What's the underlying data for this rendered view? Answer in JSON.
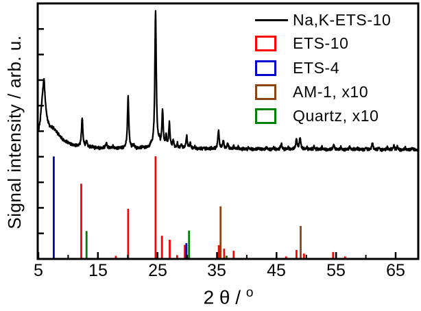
{
  "chart_data": {
    "type": "line",
    "title": "",
    "xlabel": "2 θ / °",
    "xlabel_main": "2 θ / ",
    "xlabel_sup": "o",
    "ylabel": "Signal intensity / arb. u.",
    "xlim": [
      5,
      68.8
    ],
    "ylim": [
      0,
      100
    ],
    "xticks_major": [
      5,
      15,
      25,
      35,
      45,
      55,
      65
    ],
    "xticks_minor": [
      10,
      20,
      30,
      40,
      50,
      60
    ],
    "yticks_count": 9,
    "grid": false,
    "legend_position": "top-right",
    "colors": {
      "trace": "#000000",
      "ets10": "#ff0000",
      "ets4": "#0000cc",
      "am1": "#8b4513",
      "quartz": "#008000"
    },
    "series": [
      {
        "name": "Na,K-ETS-10",
        "color": "#000000",
        "style": "line",
        "baseline": [
          [
            5,
            50
          ],
          [
            5.3,
            54
          ],
          [
            5.6,
            62
          ],
          [
            5.93,
            69
          ],
          [
            6.2,
            60
          ],
          [
            6.5,
            54.5
          ],
          [
            6.9,
            52
          ],
          [
            7.3,
            51.5
          ],
          [
            7.9,
            50.3
          ],
          [
            8.3,
            49
          ],
          [
            8.8,
            47.5
          ],
          [
            9.4,
            46.2
          ],
          [
            10,
            45.5
          ],
          [
            10.7,
            44.6
          ],
          [
            11.3,
            44.3
          ],
          [
            12,
            44
          ],
          [
            13,
            43.7
          ],
          [
            14,
            43.5
          ],
          [
            15,
            43.4
          ],
          [
            16.5,
            43.3
          ],
          [
            18,
            43.3
          ],
          [
            20,
            43.2
          ],
          [
            23,
            43.2
          ],
          [
            26,
            43.1
          ],
          [
            30,
            43.1
          ],
          [
            34,
            43
          ],
          [
            38,
            43
          ],
          [
            43,
            42.9
          ],
          [
            48,
            42.9
          ],
          [
            53,
            42.8
          ],
          [
            58,
            42.8
          ],
          [
            63,
            42.7
          ],
          [
            68.8,
            42.7
          ]
        ],
        "peaks": [
          [
            5.93,
            2,
            0.2
          ],
          [
            12.35,
            11.4,
            0.13
          ],
          [
            13.1,
            2.5,
            0.12
          ],
          [
            14.1,
            0.8,
            0.1
          ],
          [
            16.4,
            2,
            0.15
          ],
          [
            17.5,
            0.7,
            0.12
          ],
          [
            20.07,
            20.5,
            0.13
          ],
          [
            21,
            1.2,
            0.15
          ],
          [
            22.5,
            0.6,
            0.12
          ],
          [
            23.9,
            1,
            0.12
          ],
          [
            24.68,
            53.5,
            0.14
          ],
          [
            25.3,
            2,
            0.12
          ],
          [
            25.85,
            14.5,
            0.13
          ],
          [
            26.45,
            4.5,
            0.12
          ],
          [
            27,
            9.5,
            0.13
          ],
          [
            27.65,
            3,
            0.12
          ],
          [
            28.35,
            1.8,
            0.12
          ],
          [
            29,
            1.5,
            0.12
          ],
          [
            29.9,
            4.8,
            0.13
          ],
          [
            30.5,
            2.2,
            0.12
          ],
          [
            31.3,
            0.8,
            0.1
          ],
          [
            32.8,
            0.6,
            0.1
          ],
          [
            34,
            0.5,
            0.1
          ],
          [
            35.25,
            7.3,
            0.13
          ],
          [
            36.05,
            3.2,
            0.12
          ],
          [
            36.8,
            2.2,
            0.12
          ],
          [
            37.8,
            1.2,
            0.1
          ],
          [
            38.6,
            0.8,
            0.1
          ],
          [
            40.3,
            0.6,
            0.1
          ],
          [
            42,
            0.5,
            0.1
          ],
          [
            43.3,
            0.8,
            0.1
          ],
          [
            44.5,
            0.6,
            0.1
          ],
          [
            45.8,
            2.2,
            0.12
          ],
          [
            47,
            0.7,
            0.1
          ],
          [
            48.35,
            4,
            0.13
          ],
          [
            48.95,
            4.6,
            0.13
          ],
          [
            50.1,
            0.8,
            0.1
          ],
          [
            51.3,
            1.3,
            0.1
          ],
          [
            52.6,
            1.1,
            0.1
          ],
          [
            54.6,
            2,
            0.12
          ],
          [
            55.8,
            0.9,
            0.1
          ],
          [
            57.3,
            1.2,
            0.1
          ],
          [
            58.6,
            0.7,
            0.1
          ],
          [
            60,
            0.8,
            0.1
          ],
          [
            61.1,
            2.6,
            0.12
          ],
          [
            62.2,
            0.9,
            0.1
          ],
          [
            63.6,
            1.1,
            0.1
          ],
          [
            64.7,
            1.7,
            0.12
          ],
          [
            65.3,
            1.2,
            0.1
          ],
          [
            66.6,
            0.9,
            0.1
          ],
          [
            67.8,
            0.8,
            0.1
          ]
        ]
      },
      {
        "name": "ETS-10",
        "color": "#ff0000",
        "style": "stem",
        "sticks": [
          [
            12.2,
            29.4
          ],
          [
            18,
            1.2
          ],
          [
            20.07,
            19.6
          ],
          [
            24.68,
            40.2
          ],
          [
            25.75,
            9.1
          ],
          [
            27.05,
            7.5
          ],
          [
            28.3,
            1.5
          ],
          [
            29.6,
            5.5
          ],
          [
            35.3,
            5.4
          ],
          [
            36.2,
            4
          ],
          [
            37.8,
            3.2
          ],
          [
            46.6,
            1
          ],
          [
            48.35,
            3.5
          ],
          [
            49.6,
            2.1
          ],
          [
            54.5,
            2.7
          ],
          [
            56.5,
            1
          ]
        ]
      },
      {
        "name": "ETS-4",
        "color": "#0000cc",
        "style": "stem",
        "sticks": [
          [
            7.58,
            40.1
          ],
          [
            29.85,
            6.2
          ]
        ]
      },
      {
        "name": "AM-1, x10",
        "color": "#8b4513",
        "style": "stem",
        "sticks": [
          [
            35.6,
            20.6
          ],
          [
            49.05,
            12.9
          ]
        ]
      },
      {
        "name": "Quartz, x10",
        "color": "#008000",
        "style": "stem",
        "sticks": [
          [
            13.08,
            10.9
          ],
          [
            30.3,
            11.1
          ],
          [
            36.6,
            1.3
          ]
        ]
      }
    ]
  }
}
